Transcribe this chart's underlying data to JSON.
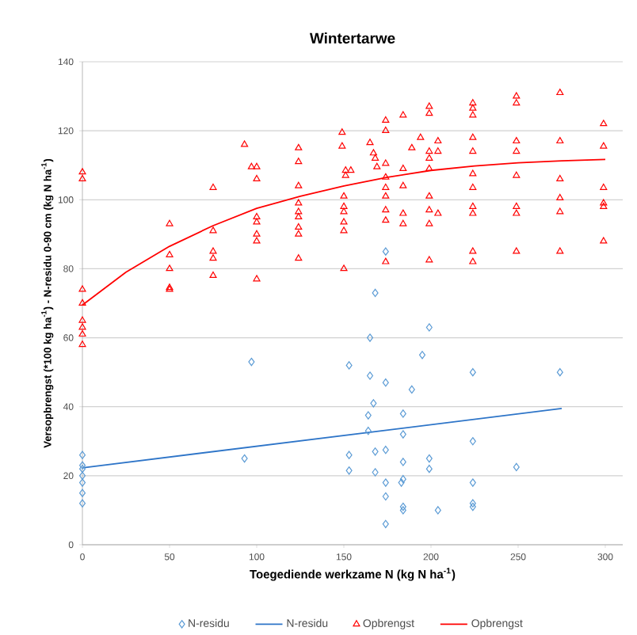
{
  "chart_data": {
    "type": "scatter",
    "title": "Wintertarwe",
    "xlabel": "Toegediende werkzame N (kg N ha$^{-1}$)",
    "ylabel": "Versopbrengst (*100 kg  ha$^{-1}$) - N-residu 0-90 cm (kg N ha$^{-1}$)",
    "xlim": [
      0,
      310
    ],
    "ylim": [
      0,
      140
    ],
    "xticks": [
      0,
      50,
      100,
      150,
      200,
      250,
      300
    ],
    "yticks": [
      0,
      20,
      40,
      60,
      80,
      100,
      120,
      140
    ],
    "grid": "y",
    "legend": "bottom",
    "series": [
      {
        "name": "N-residu",
        "marker": "diamond",
        "color": "#5b9bd5",
        "x": [
          0,
          0,
          0,
          0,
          0,
          0,
          0,
          93,
          97,
          153,
          165,
          165,
          168,
          174,
          174,
          189,
          195,
          199,
          224,
          274,
          167,
          164,
          164,
          153,
          153,
          168,
          168,
          174,
          174,
          174,
          174,
          184,
          184,
          184,
          184,
          183,
          184,
          184,
          199,
          199,
          204,
          224,
          224,
          224,
          224,
          249
        ],
        "values": [
          26,
          23,
          22,
          20,
          18,
          15,
          12,
          25,
          53,
          52,
          60,
          49,
          73,
          47,
          85,
          45,
          55,
          63,
          50,
          50,
          41,
          37.5,
          33,
          26,
          21.5,
          27,
          21,
          27.5,
          18,
          14,
          6,
          38,
          32,
          24,
          19,
          18,
          11,
          10,
          25,
          22,
          10,
          30,
          18,
          12,
          11,
          22.5
        ]
      },
      {
        "name": "N-residu",
        "type": "line",
        "color": "#2e75c8",
        "x": [
          0,
          275
        ],
        "values": [
          22.3,
          39.5
        ]
      },
      {
        "name": "Opbrengst",
        "marker": "triangle",
        "color": "#ff0000",
        "x": [
          0,
          0,
          0,
          0,
          0,
          0,
          0,
          0,
          50,
          50,
          50,
          50,
          50,
          75,
          75,
          75,
          75,
          75,
          93,
          97,
          100,
          100,
          100,
          100,
          100,
          100,
          100,
          124,
          124,
          124,
          124,
          124,
          124,
          124,
          124,
          124,
          149,
          149,
          151,
          151,
          154,
          150,
          150,
          150,
          150,
          150,
          150,
          165,
          167,
          168,
          169,
          174,
          174,
          174,
          174,
          174,
          174,
          174,
          174,
          174,
          184,
          184,
          184,
          184,
          184,
          189,
          194,
          199,
          199,
          199,
          199,
          199,
          199,
          199,
          199,
          199,
          204,
          204,
          204,
          224,
          224,
          224,
          224,
          224,
          224,
          224,
          224,
          224,
          224,
          224,
          249,
          249,
          249,
          249,
          249,
          249,
          249,
          249,
          274,
          274,
          274,
          274,
          274,
          274,
          299,
          299,
          299,
          299,
          299,
          299
        ],
        "values": [
          108,
          106,
          74,
          70,
          65,
          63,
          61,
          58,
          93,
          84,
          80,
          74.5,
          74,
          103.5,
          91,
          85,
          83,
          78,
          116,
          109.5,
          109.5,
          106,
          95,
          93.5,
          90,
          88,
          77,
          115,
          111,
          104,
          99,
          96.5,
          95,
          92,
          90,
          83,
          119.5,
          115.5,
          108.5,
          107,
          108.5,
          101,
          98,
          96.5,
          93.5,
          91,
          80,
          116.5,
          113.5,
          112,
          109.5,
          123,
          120,
          110.5,
          106.5,
          103.5,
          101,
          97,
          94,
          82,
          124.5,
          109,
          104,
          96,
          93,
          115,
          118,
          127,
          125,
          114,
          112,
          109,
          101,
          97,
          93,
          82.5,
          117,
          114,
          96,
          128,
          126.5,
          124.5,
          118,
          114,
          107.5,
          103.5,
          98,
          96,
          85,
          82,
          130,
          128,
          117,
          114,
          107,
          98,
          96,
          85,
          131,
          117,
          106,
          100.5,
          96.5,
          85,
          122,
          115.5,
          103.5,
          99,
          98,
          88
        ]
      },
      {
        "name": "Opbrengst",
        "type": "line",
        "color": "#ff0000",
        "x": [
          0,
          25,
          50,
          75,
          100,
          125,
          150,
          175,
          200,
          225,
          250,
          275,
          300
        ],
        "values": [
          69.5,
          79,
          86.5,
          92.5,
          97.5,
          101,
          104,
          106.5,
          108.5,
          109.8,
          110.7,
          111.3,
          111.7
        ]
      }
    ]
  }
}
